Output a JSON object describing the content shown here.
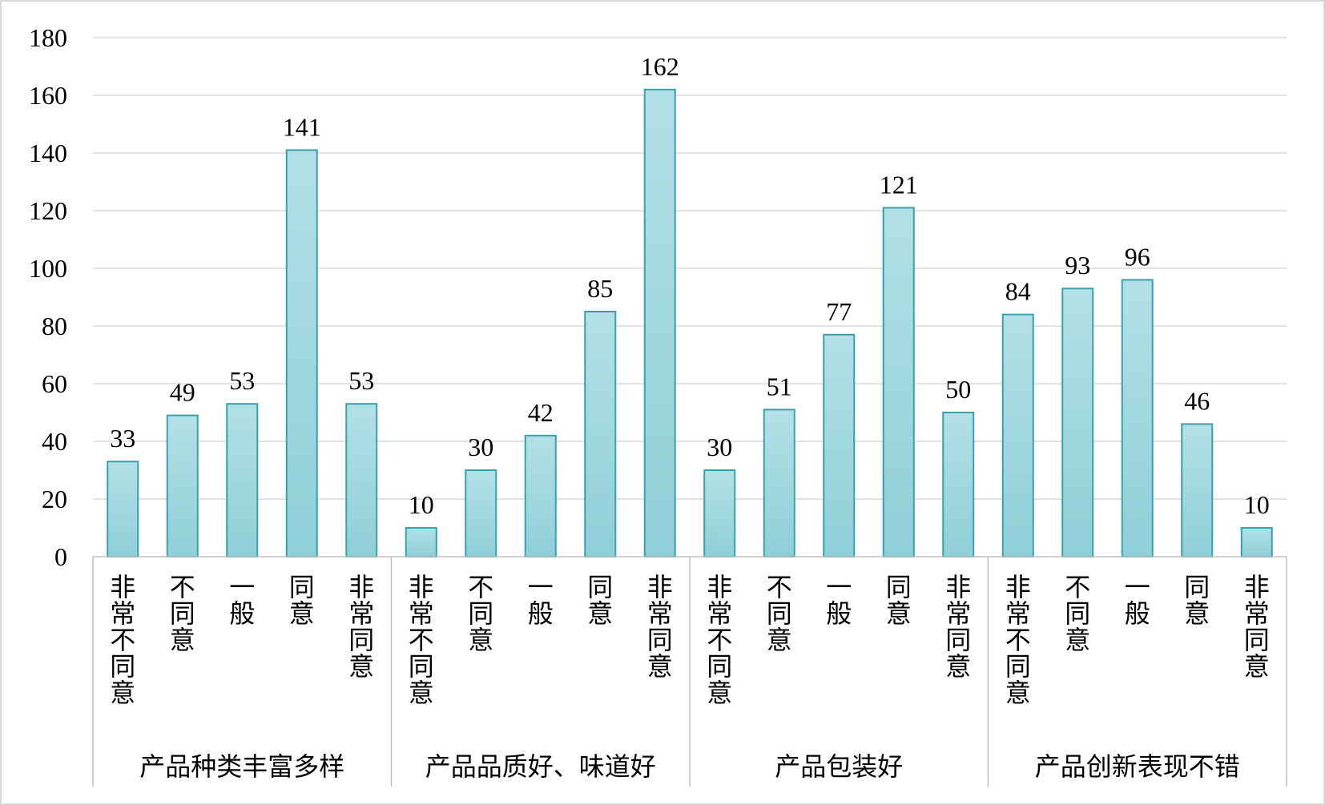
{
  "chart_data": {
    "type": "bar",
    "title": "",
    "xlabel": "",
    "ylabel": "",
    "ylim": [
      0,
      180
    ],
    "yticks": [
      0,
      20,
      40,
      60,
      80,
      100,
      120,
      140,
      160,
      180
    ],
    "grid": true,
    "legend": "none",
    "colors": {
      "bar_fill_top": "#b3e0e6",
      "bar_fill_bottom": "#8fcfd8",
      "bar_stroke": "#3aa0ad",
      "grid": "#d9d9d9"
    },
    "groups": [
      {
        "name": "产品种类丰富多样",
        "categories": [
          "非常不同意",
          "不同意",
          "一般",
          "同意",
          "非常同意"
        ],
        "values": [
          33,
          49,
          53,
          141,
          53
        ]
      },
      {
        "name": "产品品质好、味道好",
        "categories": [
          "非常不同意",
          "不同意",
          "一般",
          "同意",
          "非常同意"
        ],
        "values": [
          10,
          30,
          42,
          85,
          162
        ]
      },
      {
        "name": "产品包装好",
        "categories": [
          "非常不同意",
          "不同意",
          "一般",
          "同意",
          "非常同意"
        ],
        "values": [
          30,
          51,
          77,
          121,
          50
        ]
      },
      {
        "name": "产品创新表现不错",
        "categories": [
          "非常不同意",
          "不同意",
          "一般",
          "同意",
          "非常同意"
        ],
        "values": [
          84,
          93,
          96,
          46,
          10
        ]
      }
    ]
  }
}
